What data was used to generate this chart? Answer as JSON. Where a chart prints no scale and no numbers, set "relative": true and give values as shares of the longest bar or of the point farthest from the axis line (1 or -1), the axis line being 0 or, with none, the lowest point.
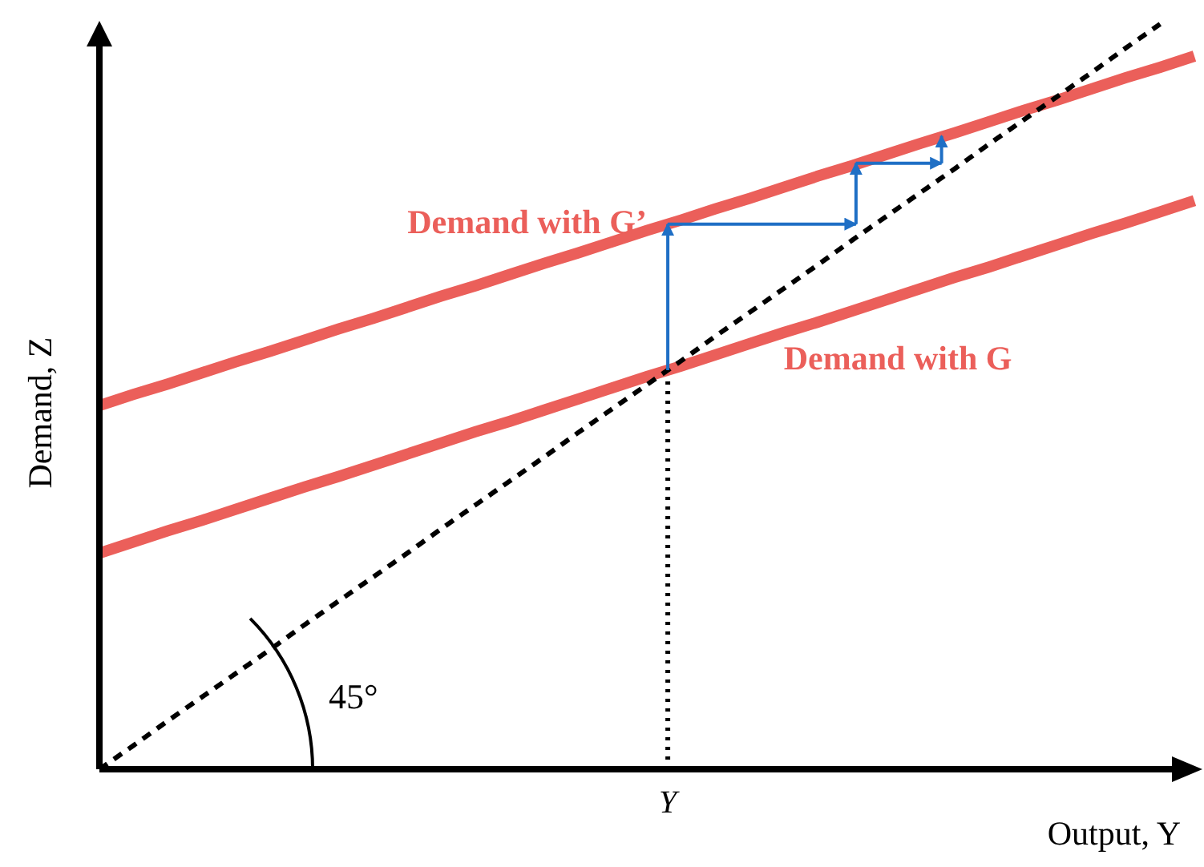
{
  "chart_data": {
    "type": "line",
    "relative": true,
    "xlabel": "Output, Y",
    "ylabel": "Demand, Z",
    "marker": "none",
    "categories": [
      null,
      null,
      null,
      null,
      null,
      null,
      null,
      null,
      null,
      null,
      null,
      null,
      null,
      null,
      null,
      null,
      null,
      null,
      null,
      null,
      null,
      null,
      null,
      null,
      null,
      null,
      null,
      null,
      null,
      null,
      null,
      null,
      null
    ],
    "series": [
      {
        "name": "Demand with G’",
        "color": "#eb5f5a",
        "line_style": "solid",
        "values": [
          0.488,
          0.503,
          0.517,
          0.532,
          0.547,
          0.561,
          0.576,
          0.591,
          0.605,
          0.62,
          0.635,
          0.649,
          0.664,
          0.679,
          0.693,
          0.708,
          0.723,
          0.737,
          0.752,
          0.766,
          0.781,
          0.796,
          0.81,
          0.825,
          0.84,
          0.854,
          0.869,
          0.884,
          0.898,
          0.913,
          0.928,
          0.942,
          0.957
        ]
      },
      {
        "name": "Demand with G",
        "color": "#eb5f5a",
        "line_style": "solid",
        "values": [
          0.29,
          0.305,
          0.32,
          0.334,
          0.349,
          0.364,
          0.379,
          0.393,
          0.408,
          0.423,
          0.438,
          0.453,
          0.467,
          0.482,
          0.497,
          0.512,
          0.527,
          0.541,
          0.556,
          0.571,
          0.586,
          0.6,
          0.615,
          0.63,
          0.645,
          0.66,
          0.674,
          0.689,
          0.704,
          0.719,
          0.733,
          0.748,
          0.763
        ]
      },
      {
        "color": "#000000",
        "line_style": "dashed",
        "values": [
          0,
          0.032,
          0.065,
          0.097,
          0.129,
          0.161,
          0.194,
          0.226,
          0.258,
          0.29,
          0.323,
          0.355,
          0.387,
          0.419,
          0.452,
          0.484,
          0.516,
          0.548,
          0.581,
          0.613,
          0.645,
          0.677,
          0.71,
          0.742,
          0.774,
          0.806,
          0.839,
          0.871,
          0.903,
          0.935,
          0.968,
          1,
          null
        ]
      }
    ],
    "ref_lines": [
      {
        "axis": "x",
        "label": "Y",
        "line_style": "dotted",
        "color": "#000000"
      }
    ],
    "annotations": [
      "45°"
    ]
  }
}
